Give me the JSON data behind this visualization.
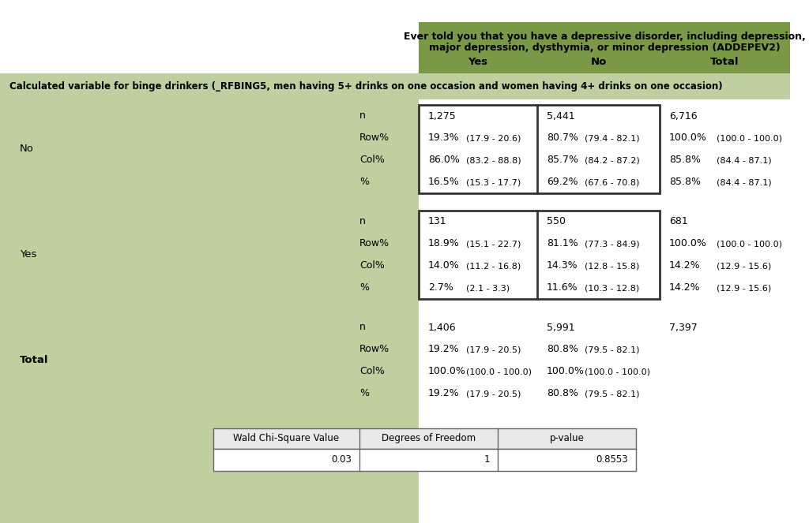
{
  "title_line1": "Ever told you that you have a depressive disorder, including depression,",
  "title_line2": "major depression, dysthymia, or minor depression (ADDEPEV2)",
  "col_headers": [
    "Yes",
    "No",
    "Total"
  ],
  "row_var_label": "Calculated variable for binge drinkers (_RFBING5, men having 5+ drinks on one occasion and women having 4+ drinks on one occasion)",
  "bg_green_header": "#7a9947",
  "bg_green_light": "#bfcfa0",
  "white": "#ffffff",
  "border_dark": "#333333",
  "chi_header_bg": "#e8e8e8",
  "chi_border": "#666666",
  "no_data": {
    "n": [
      "1,275",
      "5,441",
      "6,716"
    ],
    "Row%": [
      "19.3%",
      "(17.9 - 20.6)",
      "80.7%",
      "(79.4 - 82.1)",
      "100.0%",
      "(100.0 - 100.0)"
    ],
    "Col%": [
      "86.0%",
      "(83.2 - 88.8)",
      "85.7%",
      "(84.2 - 87.2)",
      "85.8%",
      "(84.4 - 87.1)"
    ],
    "pct": [
      "16.5%",
      "(15.3 - 17.7)",
      "69.2%",
      "(67.6 - 70.8)",
      "85.8%",
      "(84.4 - 87.1)"
    ]
  },
  "yes_data": {
    "n": [
      "131",
      "550",
      "681"
    ],
    "Row%": [
      "18.9%",
      "(15.1 - 22.7)",
      "81.1%",
      "(77.3 - 84.9)",
      "100.0%",
      "(100.0 - 100.0)"
    ],
    "Col%": [
      "14.0%",
      "(11.2 - 16.8)",
      "14.3%",
      "(12.8 - 15.8)",
      "14.2%",
      "(12.9 - 15.6)"
    ],
    "pct": [
      "2.7%",
      "(2.1 - 3.3)",
      "11.6%",
      "(10.3 - 12.8)",
      "14.2%",
      "(12.9 - 15.6)"
    ]
  },
  "total_data": {
    "n": [
      "1,406",
      "5,991",
      "7,397"
    ],
    "Row%": [
      "19.2%",
      "(17.9 - 20.5)",
      "80.8%",
      "(79.5 - 82.1)",
      "",
      ""
    ],
    "Col%": [
      "100.0%",
      "(100.0 - 100.0)",
      "100.0%",
      "(100.0 - 100.0)",
      "",
      ""
    ],
    "pct": [
      "19.2%",
      "(17.9 - 20.5)",
      "80.8%",
      "(79.5 - 82.1)",
      "",
      ""
    ]
  },
  "chi_square": "0.03",
  "df": "1",
  "pvalue": "0.8553"
}
